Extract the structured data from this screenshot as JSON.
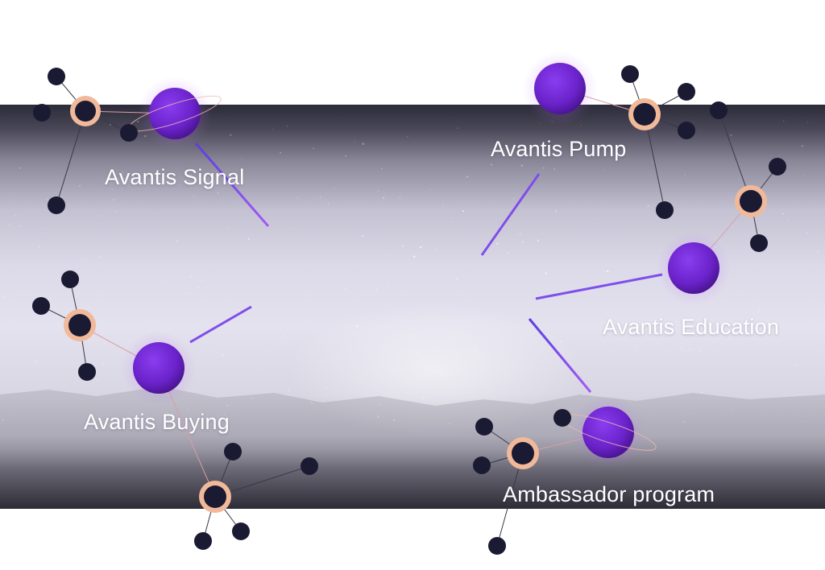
{
  "colors": {
    "planet": "#6a22c9",
    "node_dark": "#1b1a33",
    "node_ring": "#f1b99a",
    "connector": "#8d4ff0"
  },
  "labels": {
    "signal": "Avantis Signal",
    "pump": "Avantis Pump",
    "education": "Avantis Education",
    "buying": "Avantis Buying",
    "ambassador": "Ambassador program"
  }
}
